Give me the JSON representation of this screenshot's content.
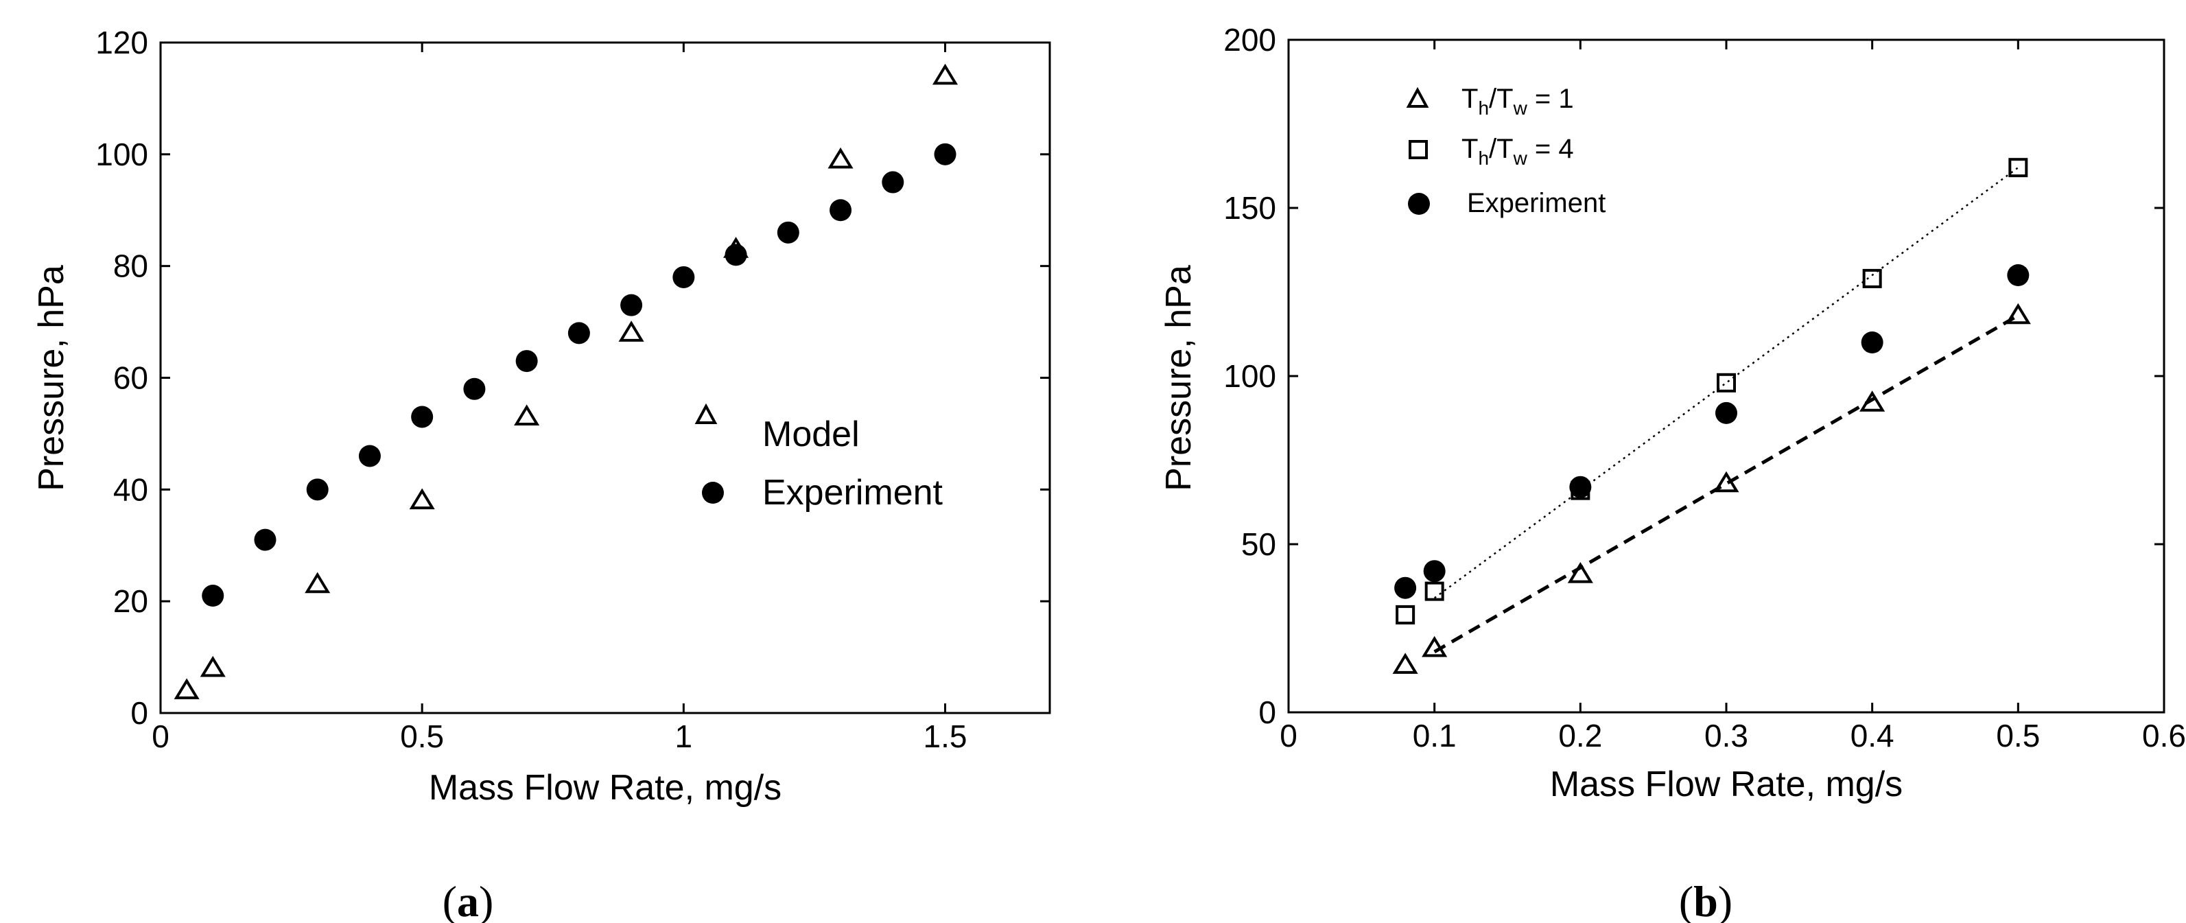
{
  "chart_data": [
    {
      "type": "scatter",
      "panel_label": "a",
      "xlabel": "Mass Flow Rate, mg/s",
      "ylabel": "Pressure, hPa",
      "xlim": [
        0,
        1.7
      ],
      "ylim": [
        0,
        120
      ],
      "xticks": [
        0,
        0.5,
        1,
        1.5
      ],
      "xtick_labels": [
        "0",
        "0.5",
        "1",
        "1.5"
      ],
      "yticks": [
        0,
        20,
        40,
        60,
        80,
        100,
        120
      ],
      "ytick_labels": [
        "0",
        "20",
        "40",
        "60",
        "80",
        "100",
        "120"
      ],
      "legend_position": "center-right",
      "series": [
        {
          "name": "Model",
          "marker": "triangle",
          "x": [
            0.05,
            0.1,
            0.3,
            0.5,
            0.7,
            0.9,
            1.1,
            1.3,
            1.5
          ],
          "y": [
            4,
            8,
            23,
            38,
            53,
            68,
            83,
            99,
            114
          ]
        },
        {
          "name": "Experiment",
          "marker": "circle",
          "x": [
            0.1,
            0.2,
            0.3,
            0.4,
            0.5,
            0.6,
            0.7,
            0.8,
            0.9,
            1.0,
            1.1,
            1.2,
            1.3,
            1.4,
            1.5
          ],
          "y": [
            21,
            31,
            40,
            46,
            53,
            58,
            63,
            68,
            73,
            78,
            82,
            86,
            90,
            95,
            100
          ]
        }
      ]
    },
    {
      "type": "scatter",
      "panel_label": "b",
      "xlabel": "Mass Flow Rate, mg/s",
      "ylabel": "Pressure, hPa",
      "xlim": [
        0,
        0.6
      ],
      "ylim": [
        0,
        200
      ],
      "xticks": [
        0,
        0.1,
        0.2,
        0.3,
        0.4,
        0.5,
        0.6
      ],
      "xtick_labels": [
        "0",
        "0.1",
        "0.2",
        "0.3",
        "0.4",
        "0.5",
        "0.6"
      ],
      "yticks": [
        0,
        50,
        100,
        150,
        200
      ],
      "ytick_labels": [
        "0",
        "50",
        "100",
        "150",
        "200"
      ],
      "legend_position": "top-left",
      "series": [
        {
          "name": "Th/Tw = 1",
          "legend_parts": [
            "T",
            "h",
            "/T",
            "w",
            " = 1"
          ],
          "marker": "triangle",
          "fit_line": "dashed",
          "fit_x": [
            0.1,
            0.5
          ],
          "fit_y": [
            18,
            118
          ],
          "x": [
            0.08,
            0.1,
            0.2,
            0.3,
            0.4,
            0.5
          ],
          "y": [
            14,
            19,
            41,
            68,
            92,
            118
          ]
        },
        {
          "name": "Th/Tw = 4",
          "legend_parts": [
            "T",
            "h",
            "/T",
            "w",
            " = 4"
          ],
          "marker": "square",
          "fit_line": "dotted",
          "fit_x": [
            0.1,
            0.5
          ],
          "fit_y": [
            34,
            162
          ],
          "x": [
            0.08,
            0.1,
            0.2,
            0.3,
            0.4,
            0.5
          ],
          "y": [
            29,
            36,
            66,
            98,
            129,
            162
          ]
        },
        {
          "name": "Experiment",
          "marker": "circle",
          "x": [
            0.08,
            0.1,
            0.2,
            0.3,
            0.4,
            0.5
          ],
          "y": [
            37,
            42,
            67,
            89,
            110,
            130
          ]
        }
      ]
    }
  ]
}
